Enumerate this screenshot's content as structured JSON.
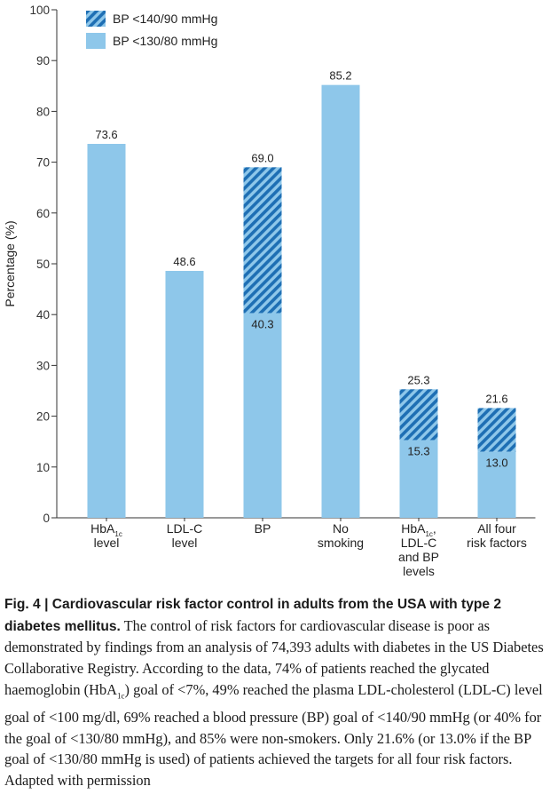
{
  "chart_data": {
    "type": "bar",
    "ylabel": "Percentage (%)",
    "xlabel": "",
    "ylim": [
      0,
      100
    ],
    "yticks": [
      "0",
      "10",
      "20",
      "30",
      "40",
      "50",
      "60",
      "70",
      "80",
      "90",
      "100"
    ],
    "legend": {
      "placement": "top-left",
      "entries": [
        {
          "label": "BP <140/90 mmHg",
          "style": "hatched"
        },
        {
          "label": "BP <130/80 mmHg",
          "style": "solid"
        }
      ]
    },
    "colors": {
      "bar": "#8ec7ea",
      "hatch": "#1e6fb4",
      "axis": "#333333"
    },
    "categories": [
      {
        "lines": [
          "HbA1c",
          "level"
        ],
        "sub": {
          "line": 0,
          "base": "HbA",
          "text": "1c"
        }
      },
      {
        "lines": [
          "LDL-C",
          "level"
        ]
      },
      {
        "lines": [
          "BP"
        ]
      },
      {
        "lines": [
          "No",
          "smoking"
        ]
      },
      {
        "lines": [
          "HbA1c,",
          "LDL-C",
          "and BP",
          "levels"
        ],
        "sub": {
          "line": 0,
          "base": "HbA",
          "text": "1c",
          "after": ","
        }
      },
      {
        "lines": [
          "All four",
          "risk factors"
        ]
      }
    ],
    "series": [
      {
        "name": "BP <130/80 mmHg",
        "values": [
          73.6,
          48.6,
          40.3,
          85.2,
          15.3,
          13.0
        ],
        "labels": [
          "73.6",
          "48.6",
          "40.3",
          "85.2",
          "15.3",
          "13.0"
        ]
      },
      {
        "name": "BP <140/90 mmHg",
        "values": [
          null,
          null,
          69.0,
          null,
          25.3,
          21.6
        ],
        "labels": [
          "",
          "",
          "69.0",
          "",
          "25.3",
          "21.6"
        ]
      }
    ]
  },
  "caption": {
    "fig": "Fig. 4",
    "sep": " | ",
    "title": "Cardiovascular risk factor control in adults from the USA with type 2 diabetes mellitus.",
    "t1": " The control of risk factors for cardiovascular disease is poor as demonstrated by findings from an analysis of 74,393 adults with diabetes in the US Diabetes Collaborative Registry. According to the data, 74% of patients reached the glycated haemoglobin (HbA",
    "sub": "1c",
    "t2": ") goal of <7%, 49% reached the plasma LDL-cholesterol (LDL-C) level goal of <100 mg/dl, 69% reached a blood pressure (BP) goal of <140/90 mmHg (or 40% for the goal of <130/80 mmHg), and 85% were non-smokers. Only 21.6% (or 13.0% if the BP goal of <130/80 mmHg is used) of patients achieved the targets for all four risk factors. Adapted with permission"
  }
}
